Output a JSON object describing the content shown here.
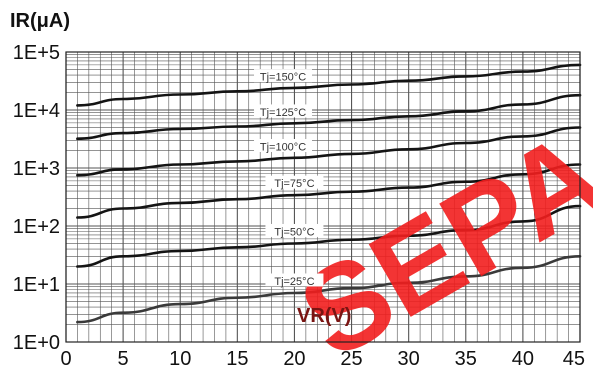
{
  "chart_data": {
    "type": "line",
    "ylabel": "IR(μA)",
    "xlabel": "VR(V)",
    "y_scale": "log",
    "xlim": [
      0,
      45
    ],
    "ylim": [
      1,
      100000
    ],
    "grid": true,
    "x_ticks": [
      "0",
      "5",
      "10",
      "15",
      "20",
      "25",
      "30",
      "35",
      "40",
      "45"
    ],
    "y_ticks": [
      "1E+0",
      "1E+1",
      "1E+2",
      "1E+3",
      "1E+4",
      "1E+5"
    ],
    "watermark": "SEPA",
    "series": [
      {
        "name": "Tj=150°C",
        "x": [
          1,
          5,
          10,
          15,
          20,
          25,
          30,
          35,
          40,
          45
        ],
        "y": [
          12000,
          15500,
          18500,
          21000,
          24000,
          27500,
          32000,
          38000,
          46000,
          60000
        ]
      },
      {
        "name": "Tj=125°C",
        "x": [
          1,
          5,
          10,
          15,
          20,
          25,
          30,
          35,
          40,
          45
        ],
        "y": [
          3200,
          4000,
          4700,
          5200,
          5900,
          6700,
          7800,
          9500,
          12500,
          18000
        ]
      },
      {
        "name": "Tj=100°C",
        "x": [
          1,
          5,
          10,
          15,
          20,
          25,
          30,
          35,
          40,
          45
        ],
        "y": [
          750,
          950,
          1150,
          1300,
          1500,
          1750,
          2100,
          2700,
          3500,
          5000
        ]
      },
      {
        "name": "Tj=75°C",
        "x": [
          1,
          5,
          10,
          15,
          20,
          25,
          30,
          35,
          40,
          45
        ],
        "y": [
          140,
          200,
          250,
          290,
          340,
          390,
          460,
          580,
          780,
          1150
        ]
      },
      {
        "name": "Tj=50°C",
        "x": [
          1,
          5,
          10,
          15,
          20,
          25,
          30,
          35,
          40,
          45
        ],
        "y": [
          20,
          30,
          37,
          43,
          50,
          58,
          68,
          85,
          120,
          220
        ]
      },
      {
        "name": "Tj=25°C",
        "x": [
          1,
          5,
          10,
          15,
          20,
          25,
          30,
          35,
          40,
          45
        ],
        "y": [
          2.2,
          3.2,
          4.5,
          5.8,
          7.0,
          8.5,
          10.5,
          13.5,
          19,
          30
        ]
      }
    ]
  },
  "colors": {
    "curve": "#141414",
    "grid": "#555555",
    "watermark": "#f21e1e",
    "curve_label": "#444444",
    "axis_title": "#111111",
    "xlabel_text": "#7a1412"
  }
}
